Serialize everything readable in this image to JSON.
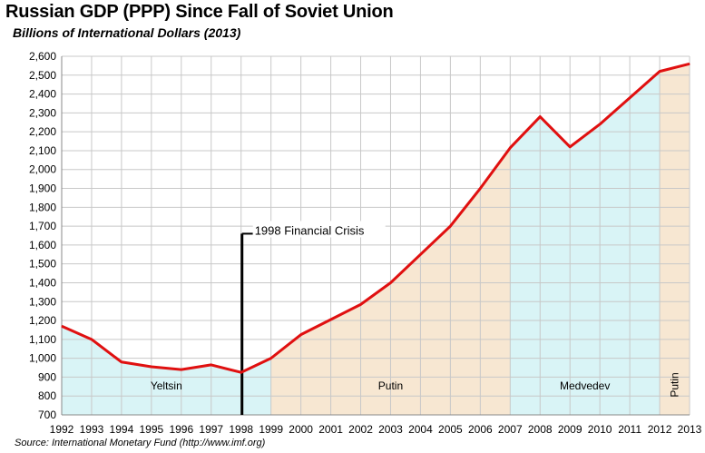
{
  "title": "Russian GDP (PPP) Since Fall of Soviet Union",
  "subtitle": "Billions of International Dollars (2013)",
  "source": "Source: International Monetary Fund (http://www.imf.org)",
  "colors": {
    "line": "#e01010",
    "yeltsin_fill": "#d9f4f6",
    "putin_fill": "#f7e7d2",
    "medvedev_fill": "#d9f4f6",
    "grid": "#c8c8c8"
  },
  "chart_data": {
    "type": "line",
    "title": "Russian GDP (PPP) Since Fall of Soviet Union",
    "subtitle": "Billions of International Dollars (2013)",
    "x": [
      1992,
      1993,
      1994,
      1995,
      1996,
      1997,
      1998,
      1999,
      2000,
      2001,
      2002,
      2003,
      2004,
      2005,
      2006,
      2007,
      2008,
      2009,
      2010,
      2011,
      2012,
      2013
    ],
    "x_tick_labels": [
      "1992",
      "1993",
      "1994",
      "1995",
      "1996",
      "1997",
      "1998",
      "1999",
      "2000",
      "2001",
      "2002",
      "2003",
      "2004",
      "2005",
      "2006",
      "2007",
      "2008",
      "2009",
      "2010",
      "2011",
      "2012",
      "2013"
    ],
    "series": [
      {
        "values": [
          1170,
          1100,
          980,
          955,
          940,
          965,
          925,
          1000,
          1125,
          1205,
          1285,
          1400,
          1550,
          1700,
          1900,
          2115,
          2280,
          2120,
          2240,
          2380,
          2520,
          2560
        ]
      }
    ],
    "ylim": [
      700,
      2600
    ],
    "y_ticks": [
      700,
      800,
      900,
      1000,
      1100,
      1200,
      1300,
      1400,
      1500,
      1600,
      1700,
      1800,
      1900,
      2000,
      2100,
      2200,
      2300,
      2400,
      2500,
      2600
    ],
    "y_tick_labels": [
      "700",
      "800",
      "900",
      "1,000",
      "1,100",
      "1,200",
      "1,300",
      "1,400",
      "1,500",
      "1,600",
      "1,700",
      "1,800",
      "1,900",
      "2,000",
      "2,100",
      "2,200",
      "2,300",
      "2,400",
      "2,500",
      "2,600"
    ],
    "grid": true,
    "periods": [
      {
        "label": "Yeltsin",
        "start": 1992,
        "end": 1999,
        "fill": "#d9f4f6"
      },
      {
        "label": "Putin",
        "start": 1999,
        "end": 2007,
        "fill": "#f7e7d2"
      },
      {
        "label": "Medvedev",
        "start": 2007,
        "end": 2012,
        "fill": "#d9f4f6"
      },
      {
        "label": "Putin",
        "start": 2012,
        "end": 2013,
        "fill": "#f7e7d2",
        "vertical_label": true
      }
    ],
    "annotations": [
      {
        "label": "1998 Financial Crisis",
        "x": 1998,
        "y_top": 1660
      }
    ]
  }
}
